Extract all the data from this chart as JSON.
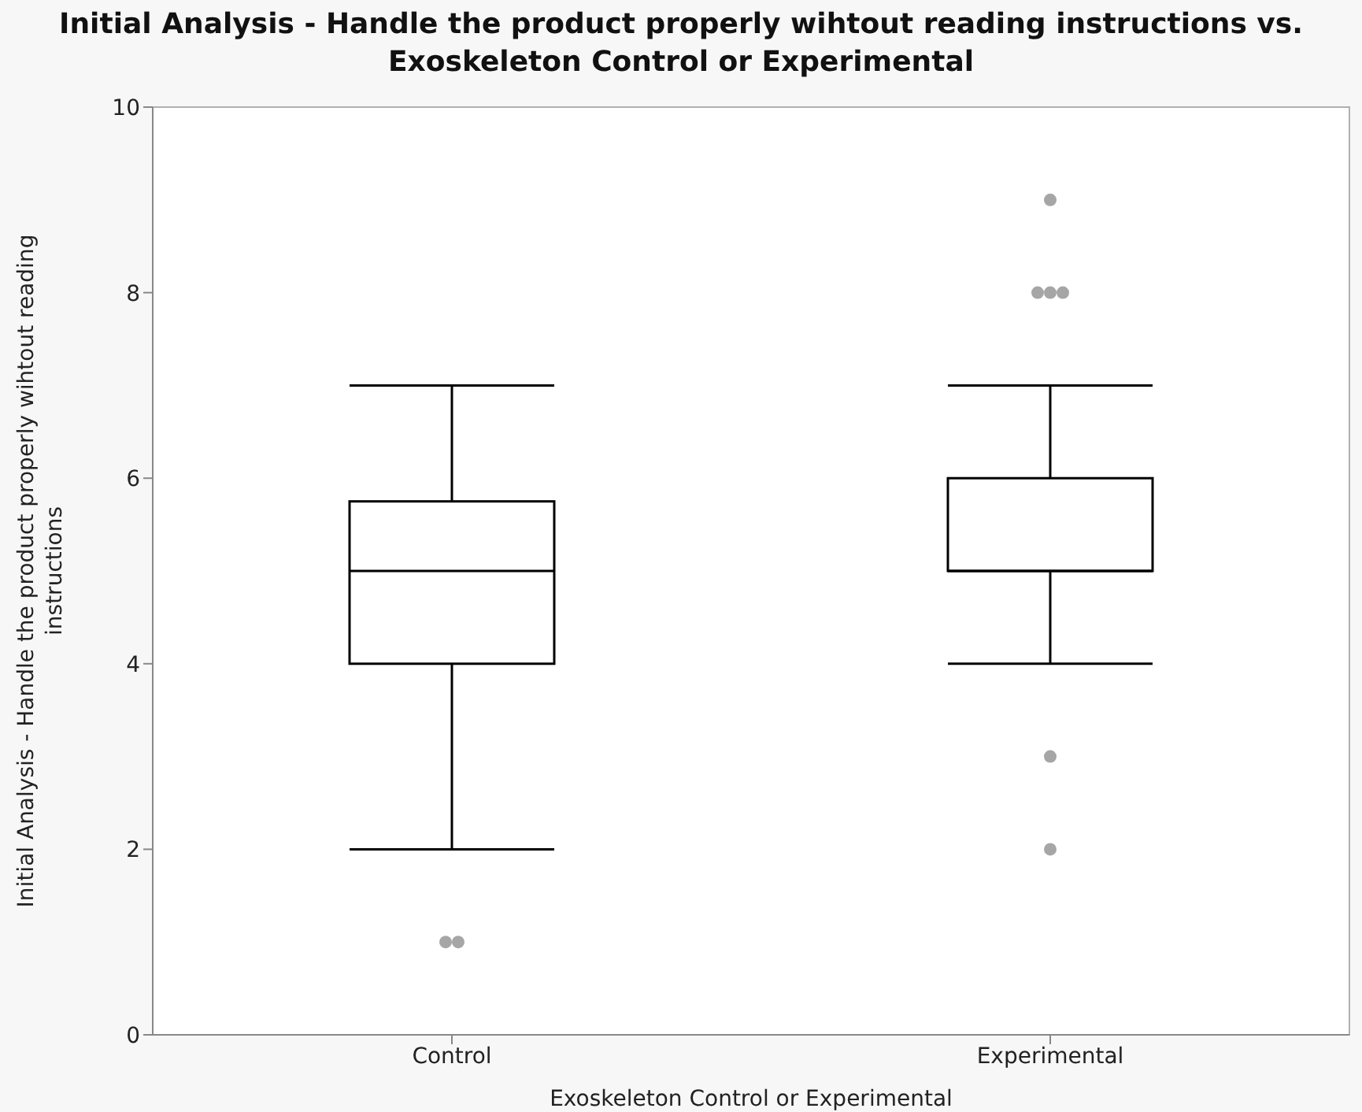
{
  "chart_data": {
    "type": "box",
    "title": "Initial Analysis - Handle the product properly wihtout reading instructions vs. Exoskeleton Control or Experimental",
    "xlabel": "Exoskeleton Control or Experimental",
    "ylabel": "Initial Analysis - Handle the product properly wihtout reading instructions",
    "categories": [
      "Control",
      "Experimental"
    ],
    "series": [
      {
        "color": "#000000",
        "boxes": [
          {
            "low": 2,
            "q1": 4,
            "median": 5,
            "q3": 5.75,
            "high": 7,
            "outliers": [
              1,
              1
            ]
          },
          {
            "low": 4,
            "q1": 5,
            "median": 5,
            "q3": 6,
            "high": 7,
            "outliers": [
              2,
              3,
              8,
              8,
              8,
              9
            ]
          }
        ]
      }
    ],
    "ylim": [
      0,
      10
    ],
    "yticks": [
      0,
      2,
      4,
      6,
      8,
      10
    ]
  }
}
